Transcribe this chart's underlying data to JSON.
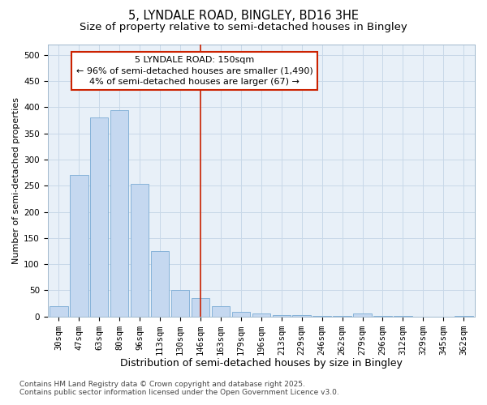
{
  "title": "5, LYNDALE ROAD, BINGLEY, BD16 3HE",
  "subtitle": "Size of property relative to semi-detached houses in Bingley",
  "xlabel": "Distribution of semi-detached houses by size in Bingley",
  "ylabel": "Number of semi-detached properties",
  "categories": [
    "30sqm",
    "47sqm",
    "63sqm",
    "80sqm",
    "96sqm",
    "113sqm",
    "130sqm",
    "146sqm",
    "163sqm",
    "179sqm",
    "196sqm",
    "213sqm",
    "229sqm",
    "246sqm",
    "262sqm",
    "279sqm",
    "296sqm",
    "312sqm",
    "329sqm",
    "345sqm",
    "362sqm"
  ],
  "values": [
    20,
    270,
    380,
    395,
    253,
    125,
    50,
    35,
    20,
    8,
    5,
    3,
    2,
    1,
    1,
    6,
    1,
    1,
    0,
    0,
    1
  ],
  "bar_color": "#c5d8f0",
  "bar_edge_color": "#7aabd4",
  "vline_x_index": 7,
  "vline_color": "#cc2200",
  "annotation_text": "5 LYNDALE ROAD: 150sqm\n← 96% of semi-detached houses are smaller (1,490)\n4% of semi-detached houses are larger (67) →",
  "annotation_box_facecolor": "#ffffff",
  "annotation_box_edgecolor": "#cc2200",
  "ylim": [
    0,
    520
  ],
  "yticks": [
    0,
    50,
    100,
    150,
    200,
    250,
    300,
    350,
    400,
    450,
    500
  ],
  "grid_color": "#c8d8e8",
  "figure_background": "#ffffff",
  "plot_background": "#e8f0f8",
  "footer_line1": "Contains HM Land Registry data © Crown copyright and database right 2025.",
  "footer_line2": "Contains public sector information licensed under the Open Government Licence v3.0.",
  "title_fontsize": 10.5,
  "subtitle_fontsize": 9.5,
  "xlabel_fontsize": 9,
  "ylabel_fontsize": 8,
  "tick_fontsize": 7.5,
  "annot_fontsize": 8,
  "footer_fontsize": 6.5
}
